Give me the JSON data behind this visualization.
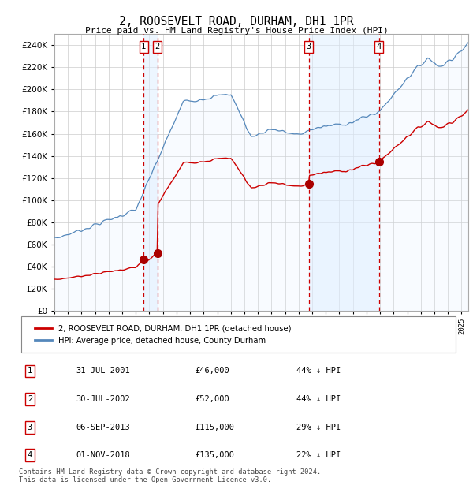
{
  "title": "2, ROOSEVELT ROAD, DURHAM, DH1 1PR",
  "subtitle": "Price paid vs. HM Land Registry's House Price Index (HPI)",
  "ylim": [
    0,
    250000
  ],
  "yticks": [
    0,
    20000,
    40000,
    60000,
    80000,
    100000,
    120000,
    140000,
    160000,
    180000,
    200000,
    220000,
    240000
  ],
  "background_color": "#ffffff",
  "plot_bg_color": "#ffffff",
  "grid_color": "#cccccc",
  "sale_times": [
    2001.583,
    2002.583,
    2013.75,
    2018.917
  ],
  "sale_prices": [
    46000,
    52000,
    115000,
    135000
  ],
  "sale_labels": [
    "1",
    "2",
    "3",
    "4"
  ],
  "legend_entries": [
    "2, ROOSEVELT ROAD, DURHAM, DH1 1PR (detached house)",
    "HPI: Average price, detached house, County Durham"
  ],
  "table_rows": [
    [
      "1",
      "31-JUL-2001",
      "£46,000",
      "44% ↓ HPI"
    ],
    [
      "2",
      "30-JUL-2002",
      "£52,000",
      "44% ↓ HPI"
    ],
    [
      "3",
      "06-SEP-2013",
      "£115,000",
      "29% ↓ HPI"
    ],
    [
      "4",
      "01-NOV-2018",
      "£135,000",
      "22% ↓ HPI"
    ]
  ],
  "footer": "Contains HM Land Registry data © Crown copyright and database right 2024.\nThis data is licensed under the Open Government Licence v3.0.",
  "hpi_color": "#5588bb",
  "hpi_fill_color": "#ddeeff",
  "price_color": "#cc0000",
  "dashed_line_color": "#cc0000",
  "label_box_color": "#ffffff",
  "label_box_edge": "#cc0000",
  "shade_color": "#ddeeff",
  "shade_alpha": 0.5,
  "marker_color": "#aa0000",
  "marker_size": 7
}
